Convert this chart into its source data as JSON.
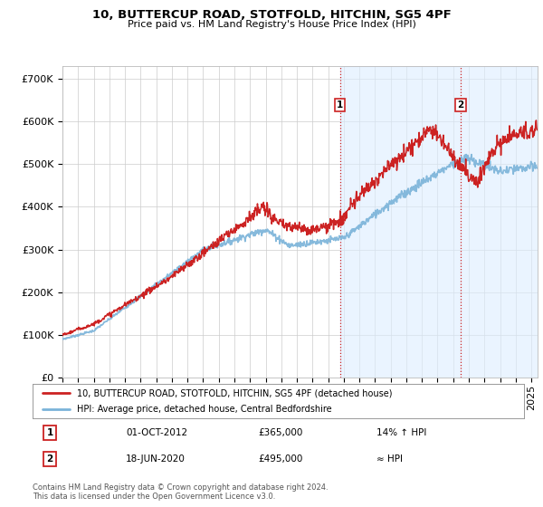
{
  "title": "10, BUTTERCUP ROAD, STOTFOLD, HITCHIN, SG5 4PF",
  "subtitle": "Price paid vs. HM Land Registry's House Price Index (HPI)",
  "ylabel_ticks": [
    "£0",
    "£100K",
    "£200K",
    "£300K",
    "£400K",
    "£500K",
    "£600K",
    "£700K"
  ],
  "ytick_values": [
    0,
    100000,
    200000,
    300000,
    400000,
    500000,
    600000,
    700000
  ],
  "ylim": [
    0,
    730000
  ],
  "xlim_start": 1995.0,
  "xlim_end": 2025.4,
  "sale1_date": 2012.75,
  "sale1_price": 365000,
  "sale2_date": 2020.47,
  "sale2_price": 495000,
  "hpi_line_color": "#7ab3d9",
  "price_color": "#cc2222",
  "shade_color": "#ddeeff",
  "legend_line1": "10, BUTTERCUP ROAD, STOTFOLD, HITCHIN, SG5 4PF (detached house)",
  "legend_line2": "HPI: Average price, detached house, Central Bedfordshire",
  "annot1_label": "1",
  "annot1_date": "01-OCT-2012",
  "annot1_price": "£365,000",
  "annot1_hpi": "14% ↑ HPI",
  "annot2_label": "2",
  "annot2_date": "18-JUN-2020",
  "annot2_price": "£495,000",
  "annot2_hpi": "≈ HPI",
  "footnote": "Contains HM Land Registry data © Crown copyright and database right 2024.\nThis data is licensed under the Open Government Licence v3.0.",
  "bg_color": "#ffffff",
  "plot_bg_color": "#ffffff",
  "grid_color": "#cccccc"
}
